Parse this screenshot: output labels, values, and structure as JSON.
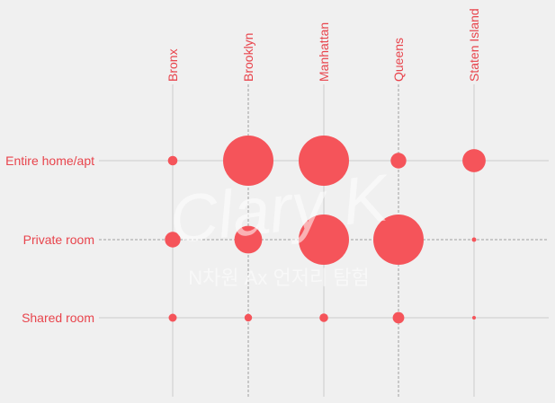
{
  "chart_data": {
    "type": "scatter",
    "title": "",
    "xlabel": "",
    "ylabel": "",
    "x_categories": [
      "Bronx",
      "Brooklyn",
      "Manhattan",
      "Queens",
      "Staten Island"
    ],
    "y_categories": [
      "Entire home/apt",
      "Private room",
      "Shared room"
    ],
    "size_encoding": "relative bubble size (max = 1.0)",
    "points": [
      {
        "x": "Bronx",
        "y": "Entire home/apt",
        "size": 0.19
      },
      {
        "x": "Brooklyn",
        "y": "Entire home/apt",
        "size": 1.0
      },
      {
        "x": "Manhattan",
        "y": "Entire home/apt",
        "size": 1.0
      },
      {
        "x": "Queens",
        "y": "Entire home/apt",
        "size": 0.31
      },
      {
        "x": "Staten Island",
        "y": "Entire home/apt",
        "size": 0.46
      },
      {
        "x": "Bronx",
        "y": "Private room",
        "size": 0.31
      },
      {
        "x": "Brooklyn",
        "y": "Private room",
        "size": 0.55
      },
      {
        "x": "Manhattan",
        "y": "Private room",
        "size": 1.0
      },
      {
        "x": "Queens",
        "y": "Private room",
        "size": 1.0
      },
      {
        "x": "Staten Island",
        "y": "Private room",
        "size": 0.09
      },
      {
        "x": "Bronx",
        "y": "Shared room",
        "size": 0.16
      },
      {
        "x": "Brooklyn",
        "y": "Shared room",
        "size": 0.15
      },
      {
        "x": "Manhattan",
        "y": "Shared room",
        "size": 0.17
      },
      {
        "x": "Queens",
        "y": "Shared room",
        "size": 0.23
      },
      {
        "x": "Staten Island",
        "y": "Shared room",
        "size": 0.07
      }
    ],
    "grid": true,
    "legend": "none"
  },
  "colors": {
    "background": "#f0f0f0",
    "bubble": "#f5545a",
    "label": "#e8444c",
    "grid": "#cbcbcb",
    "grid_dashed": "#a0a0a0"
  },
  "watermark": {
    "signature": "Clary K",
    "subtitle": "N차원 Ax 언저리 탐험"
  }
}
